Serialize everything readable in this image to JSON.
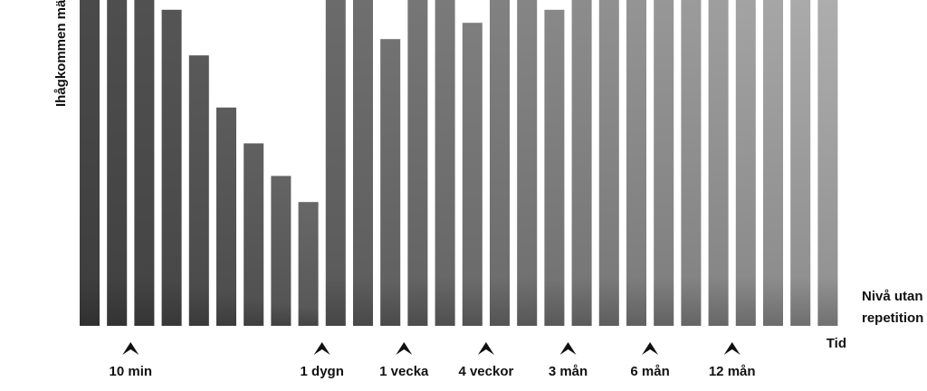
{
  "chart_data": {
    "type": "bar",
    "y_label": "Ihågkommen mä",
    "x_label": "Tid",
    "baseline_label": [
      "Nivå utan",
      "repetition"
    ],
    "categories": [
      null,
      null,
      "10 min",
      null,
      null,
      null,
      null,
      null,
      null,
      "1 dygn",
      null,
      null,
      "1 vecka",
      null,
      null,
      "4 veckor",
      null,
      null,
      "3 mån",
      null,
      null,
      "6 mån",
      null,
      null,
      "12 mån",
      null,
      null,
      null
    ],
    "values": [
      100,
      100,
      100,
      97,
      83,
      67,
      56,
      46,
      38,
      100,
      100,
      88,
      100,
      100,
      93,
      100,
      100,
      97,
      100,
      100,
      100,
      100,
      100,
      100,
      100,
      100,
      100,
      100
    ],
    "color": "#4a4a4a",
    "ylim": [
      0,
      100
    ]
  }
}
